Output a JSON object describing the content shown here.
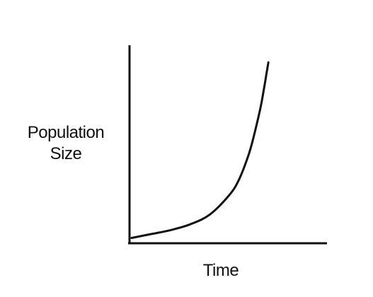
{
  "chart_data": {
    "type": "line",
    "title": "",
    "xlabel": "Time",
    "ylabel_lines": [
      "Population",
      "Size"
    ],
    "xlim": [
      0,
      1
    ],
    "ylim": [
      0,
      1
    ],
    "grid": false,
    "legend": "none",
    "line_color": "#111111",
    "series": [
      {
        "x": [
          0.0,
          0.1,
          0.2,
          0.3,
          0.4,
          0.5,
          0.55,
          0.6,
          0.63,
          0.66,
          0.68,
          0.69,
          0.7
        ],
        "values": [
          0.02,
          0.04,
          0.06,
          0.09,
          0.14,
          0.24,
          0.32,
          0.45,
          0.56,
          0.69,
          0.8,
          0.86,
          0.92
        ]
      }
    ]
  }
}
